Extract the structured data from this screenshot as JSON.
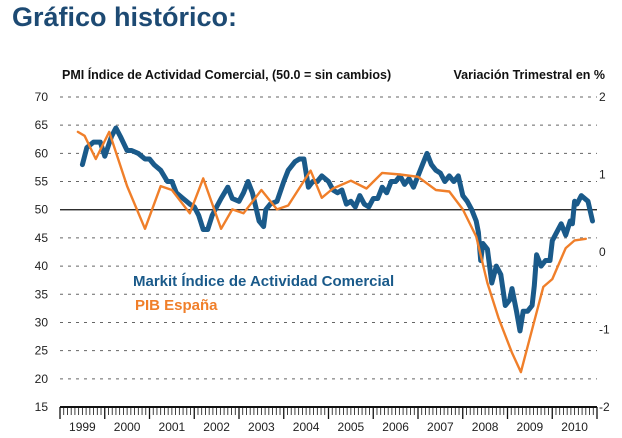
{
  "page_title": "Gráfico histórico:",
  "chart_data": {
    "type": "line",
    "title": "Gráfico histórico:",
    "left_axis_label": "PMI Índice de Actividad Comercial,  (50.0 = sin cambios)",
    "right_axis_label": "Variación Trimestral en %",
    "y_left": {
      "range": [
        15,
        70
      ],
      "ticks": [
        70,
        65,
        60,
        55,
        50,
        45,
        40,
        35,
        30,
        25,
        20,
        15
      ],
      "reference_line": 50
    },
    "y_right": {
      "range": [
        -2,
        2
      ],
      "ticks": [
        2,
        1,
        0,
        -1,
        -2
      ]
    },
    "x": {
      "range": [
        1999,
        2011
      ],
      "tick_labels": [
        "1999",
        "2000",
        "2001",
        "2002",
        "2003",
        "2004",
        "2005",
        "2006",
        "2007",
        "2008",
        "2009",
        "2010"
      ]
    },
    "grid": "dashed horizontal",
    "legend": {
      "placement": "center-left",
      "entries": [
        {
          "name": "Markit Índice de Actividad Comercial",
          "color": "#1a5a8a",
          "axis": "left"
        },
        {
          "name": "PIB España",
          "color": "#f07f2a",
          "axis": "right"
        }
      ]
    },
    "series": [
      {
        "name": "Markit Índice de Actividad Comercial",
        "axis": "left",
        "color": "#1a5a8a",
        "points": [
          [
            1999.5,
            58
          ],
          [
            1999.6,
            61
          ],
          [
            1999.75,
            62
          ],
          [
            1999.9,
            62
          ],
          [
            2000.0,
            59.5
          ],
          [
            2000.15,
            63
          ],
          [
            2000.25,
            64.5
          ],
          [
            2000.35,
            63
          ],
          [
            2000.5,
            60.5
          ],
          [
            2000.6,
            60.5
          ],
          [
            2000.75,
            60
          ],
          [
            2000.9,
            59
          ],
          [
            2001.0,
            59
          ],
          [
            2001.1,
            58
          ],
          [
            2001.25,
            57
          ],
          [
            2001.4,
            55
          ],
          [
            2001.5,
            55
          ],
          [
            2001.6,
            53
          ],
          [
            2001.75,
            52
          ],
          [
            2001.9,
            51
          ],
          [
            2002.0,
            50.5
          ],
          [
            2002.1,
            49
          ],
          [
            2002.2,
            46.5
          ],
          [
            2002.3,
            46.5
          ],
          [
            2002.4,
            49
          ],
          [
            2002.5,
            50.5
          ],
          [
            2002.6,
            52
          ],
          [
            2002.75,
            54
          ],
          [
            2002.85,
            52
          ],
          [
            2003.0,
            51.5
          ],
          [
            2003.1,
            53
          ],
          [
            2003.2,
            55
          ],
          [
            2003.3,
            53
          ],
          [
            2003.45,
            48
          ],
          [
            2003.55,
            47
          ],
          [
            2003.6,
            50
          ],
          [
            2003.7,
            51
          ],
          [
            2003.85,
            51.5
          ],
          [
            2004.0,
            55
          ],
          [
            2004.1,
            57
          ],
          [
            2004.25,
            58.5
          ],
          [
            2004.35,
            59
          ],
          [
            2004.45,
            59
          ],
          [
            2004.55,
            54
          ],
          [
            2004.65,
            55
          ],
          [
            2004.75,
            55
          ],
          [
            2004.85,
            56
          ],
          [
            2005.0,
            55
          ],
          [
            2005.1,
            53.5
          ],
          [
            2005.2,
            53
          ],
          [
            2005.3,
            53.5
          ],
          [
            2005.4,
            51
          ],
          [
            2005.5,
            51.5
          ],
          [
            2005.6,
            50.5
          ],
          [
            2005.7,
            52.5
          ],
          [
            2005.8,
            51
          ],
          [
            2005.9,
            50.5
          ],
          [
            2006.0,
            52
          ],
          [
            2006.1,
            52
          ],
          [
            2006.2,
            54
          ],
          [
            2006.3,
            53
          ],
          [
            2006.4,
            55
          ],
          [
            2006.5,
            55
          ],
          [
            2006.6,
            56
          ],
          [
            2006.7,
            54.5
          ],
          [
            2006.8,
            55.5
          ],
          [
            2006.9,
            54
          ],
          [
            2007.0,
            56
          ],
          [
            2007.1,
            58
          ],
          [
            2007.2,
            60
          ],
          [
            2007.3,
            58
          ],
          [
            2007.4,
            57
          ],
          [
            2007.5,
            56.5
          ],
          [
            2007.6,
            55
          ],
          [
            2007.7,
            56
          ],
          [
            2007.8,
            55
          ],
          [
            2007.9,
            56
          ],
          [
            2008.0,
            52.5
          ],
          [
            2008.1,
            51.5
          ],
          [
            2008.2,
            50
          ],
          [
            2008.3,
            48
          ],
          [
            2008.35,
            46
          ],
          [
            2008.4,
            41
          ],
          [
            2008.45,
            44
          ],
          [
            2008.55,
            43
          ],
          [
            2008.65,
            37
          ],
          [
            2008.75,
            40
          ],
          [
            2008.85,
            38.5
          ],
          [
            2008.95,
            33
          ],
          [
            2009.05,
            34
          ],
          [
            2009.1,
            36
          ],
          [
            2009.2,
            32
          ],
          [
            2009.28,
            28.5
          ],
          [
            2009.35,
            32
          ],
          [
            2009.45,
            32
          ],
          [
            2009.55,
            33
          ],
          [
            2009.6,
            36.5
          ],
          [
            2009.65,
            42
          ],
          [
            2009.75,
            40
          ],
          [
            2009.85,
            41
          ],
          [
            2009.95,
            41
          ],
          [
            2010.0,
            44.5
          ],
          [
            2010.1,
            46
          ],
          [
            2010.2,
            47.5
          ],
          [
            2010.3,
            45.5
          ],
          [
            2010.4,
            48
          ],
          [
            2010.45,
            47.5
          ],
          [
            2010.5,
            51.5
          ],
          [
            2010.55,
            51
          ],
          [
            2010.65,
            52.5
          ],
          [
            2010.8,
            51.5
          ],
          [
            2010.9,
            48
          ]
        ]
      },
      {
        "name": "PIB España",
        "axis": "right",
        "color": "#f07f2a",
        "points": [
          [
            1999.4,
            1.55
          ],
          [
            1999.55,
            1.5
          ],
          [
            1999.8,
            1.2
          ],
          [
            2000.1,
            1.55
          ],
          [
            2000.5,
            0.85
          ],
          [
            2000.9,
            0.3
          ],
          [
            2001.25,
            0.85
          ],
          [
            2001.5,
            0.8
          ],
          [
            2001.9,
            0.5
          ],
          [
            2002.2,
            0.95
          ],
          [
            2002.6,
            0.3
          ],
          [
            2002.85,
            0.55
          ],
          [
            2003.1,
            0.5
          ],
          [
            2003.5,
            0.8
          ],
          [
            2003.85,
            0.55
          ],
          [
            2004.1,
            0.6
          ],
          [
            2004.6,
            1.05
          ],
          [
            2004.85,
            0.7
          ],
          [
            2005.1,
            0.82
          ],
          [
            2005.5,
            0.92
          ],
          [
            2005.85,
            0.82
          ],
          [
            2006.2,
            1.02
          ],
          [
            2006.6,
            1.0
          ],
          [
            2007.0,
            0.97
          ],
          [
            2007.4,
            0.8
          ],
          [
            2007.7,
            0.78
          ],
          [
            2008.0,
            0.55
          ],
          [
            2008.3,
            0.2
          ],
          [
            2008.55,
            -0.4
          ],
          [
            2008.8,
            -0.85
          ],
          [
            2009.1,
            -1.3
          ],
          [
            2009.3,
            -1.55
          ],
          [
            2009.55,
            -1.0
          ],
          [
            2009.8,
            -0.45
          ],
          [
            2010.0,
            -0.35
          ],
          [
            2010.3,
            0.05
          ],
          [
            2010.5,
            0.15
          ],
          [
            2010.75,
            0.17
          ]
        ]
      }
    ]
  }
}
